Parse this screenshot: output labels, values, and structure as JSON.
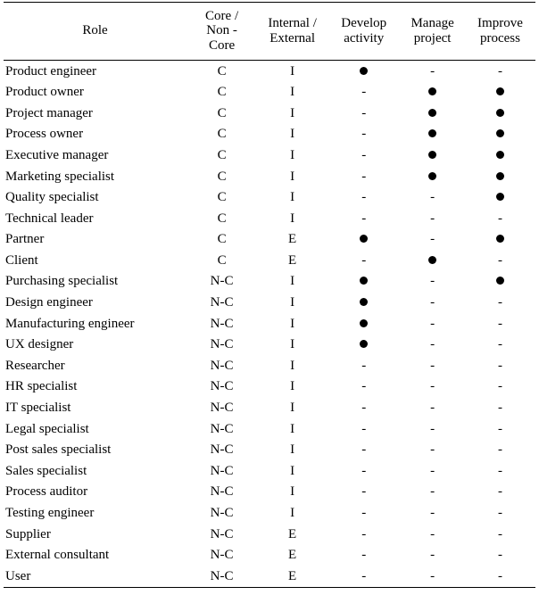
{
  "table": {
    "headers": {
      "role": "Role",
      "core": [
        "Core /",
        "Non -",
        "Core"
      ],
      "internal": [
        "Internal /",
        "External"
      ],
      "develop": [
        "Develop",
        "activity"
      ],
      "manage": [
        "Manage",
        "project"
      ],
      "improve": [
        "Improve",
        "process"
      ]
    },
    "dot_symbol": "●",
    "dash_symbol": "-",
    "rows": [
      {
        "role": "Product engineer",
        "core": "C",
        "ie": "I",
        "develop": "●",
        "manage": "-",
        "improve": "-"
      },
      {
        "role": "Product owner",
        "core": "C",
        "ie": "I",
        "develop": "-",
        "manage": "●",
        "improve": "●"
      },
      {
        "role": "Project manager",
        "core": "C",
        "ie": "I",
        "develop": "-",
        "manage": "●",
        "improve": "●"
      },
      {
        "role": "Process owner",
        "core": "C",
        "ie": "I",
        "develop": "-",
        "manage": "●",
        "improve": "●"
      },
      {
        "role": "Executive manager",
        "core": "C",
        "ie": "I",
        "develop": "-",
        "manage": "●",
        "improve": "●"
      },
      {
        "role": "Marketing specialist",
        "core": "C",
        "ie": "I",
        "develop": "-",
        "manage": "●",
        "improve": "●"
      },
      {
        "role": "Quality specialist",
        "core": "C",
        "ie": "I",
        "develop": "-",
        "manage": "-",
        "improve": "●"
      },
      {
        "role": "Technical leader",
        "core": "C",
        "ie": "I",
        "develop": "-",
        "manage": "-",
        "improve": "-"
      },
      {
        "role": "Partner",
        "core": "C",
        "ie": "E",
        "develop": "●",
        "manage": "-",
        "improve": "●"
      },
      {
        "role": "Client",
        "core": "C",
        "ie": "E",
        "develop": "-",
        "manage": "●",
        "improve": "-"
      },
      {
        "role": "Purchasing specialist",
        "core": "N-C",
        "ie": "I",
        "develop": "●",
        "manage": "-",
        "improve": "●"
      },
      {
        "role": "Design engineer",
        "core": "N-C",
        "ie": "I",
        "develop": "●",
        "manage": "-",
        "improve": "-"
      },
      {
        "role": "Manufacturing engineer",
        "core": "N-C",
        "ie": "I",
        "develop": "●",
        "manage": "-",
        "improve": "-"
      },
      {
        "role": "UX designer",
        "core": "N-C",
        "ie": "I",
        "develop": "●",
        "manage": "-",
        "improve": "-"
      },
      {
        "role": "Researcher",
        "core": "N-C",
        "ie": "I",
        "develop": "-",
        "manage": "-",
        "improve": "-"
      },
      {
        "role": "HR specialist",
        "core": "N-C",
        "ie": "I",
        "develop": "-",
        "manage": "-",
        "improve": "-"
      },
      {
        "role": "IT specialist",
        "core": "N-C",
        "ie": "I",
        "develop": "-",
        "manage": "-",
        "improve": "-"
      },
      {
        "role": "Legal specialist",
        "core": "N-C",
        "ie": "I",
        "develop": "-",
        "manage": "-",
        "improve": "-"
      },
      {
        "role": "Post sales specialist",
        "core": "N-C",
        "ie": "I",
        "develop": "-",
        "manage": "-",
        "improve": "-"
      },
      {
        "role": "Sales specialist",
        "core": "N-C",
        "ie": "I",
        "develop": "-",
        "manage": "-",
        "improve": "-"
      },
      {
        "role": "Process auditor",
        "core": "N-C",
        "ie": "I",
        "develop": "-",
        "manage": "-",
        "improve": "-"
      },
      {
        "role": "Testing engineer",
        "core": "N-C",
        "ie": "I",
        "develop": "-",
        "manage": "-",
        "improve": "-"
      },
      {
        "role": "Supplier",
        "core": "N-C",
        "ie": "E",
        "develop": "-",
        "manage": "-",
        "improve": "-"
      },
      {
        "role": "External consultant",
        "core": "N-C",
        "ie": "E",
        "develop": "-",
        "manage": "-",
        "improve": "-"
      },
      {
        "role": "User",
        "core": "N-C",
        "ie": "E",
        "develop": "-",
        "manage": "-",
        "improve": "-"
      }
    ]
  }
}
